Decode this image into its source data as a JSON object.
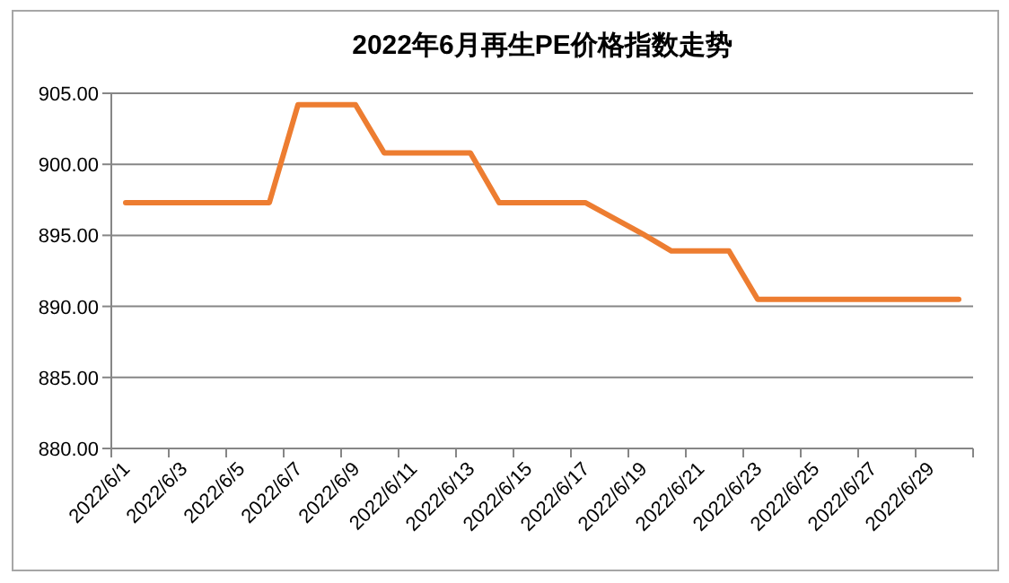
{
  "chart_data": {
    "type": "line",
    "title": "2022年6月再生PE价格指数走势",
    "categories": [
      "2022/6/1",
      null,
      "2022/6/3",
      null,
      "2022/6/5",
      null,
      "2022/6/7",
      null,
      "2022/6/9",
      null,
      "2022/6/11",
      null,
      "2022/6/13",
      null,
      "2022/6/15",
      null,
      "2022/6/17",
      null,
      "2022/6/19",
      null,
      "2022/6/21",
      null,
      "2022/6/23",
      null,
      "2022/6/25",
      null,
      "2022/6/27",
      null,
      "2022/6/29",
      null
    ],
    "series": [
      {
        "color": "#ed7d31",
        "values": [
          897.3,
          897.3,
          897.3,
          897.3,
          897.3,
          897.3,
          904.2,
          904.2,
          904.2,
          900.8,
          900.8,
          900.8,
          900.8,
          897.3,
          897.3,
          897.3,
          897.3,
          896.2,
          895.1,
          893.9,
          893.9,
          893.9,
          890.5,
          890.5,
          890.5,
          890.5,
          890.5,
          890.5,
          890.5,
          890.5
        ]
      }
    ],
    "ylim": [
      880,
      905
    ],
    "yticks": [
      {
        "value": 880,
        "label": "880.00"
      },
      {
        "value": 885,
        "label": "885.00"
      },
      {
        "value": 890,
        "label": "890.00"
      },
      {
        "value": 895,
        "label": "895.00"
      },
      {
        "value": 900,
        "label": "900.00"
      },
      {
        "value": 905,
        "label": "905.00"
      }
    ],
    "grid": "y",
    "marker": "none",
    "line_style": "solid"
  }
}
